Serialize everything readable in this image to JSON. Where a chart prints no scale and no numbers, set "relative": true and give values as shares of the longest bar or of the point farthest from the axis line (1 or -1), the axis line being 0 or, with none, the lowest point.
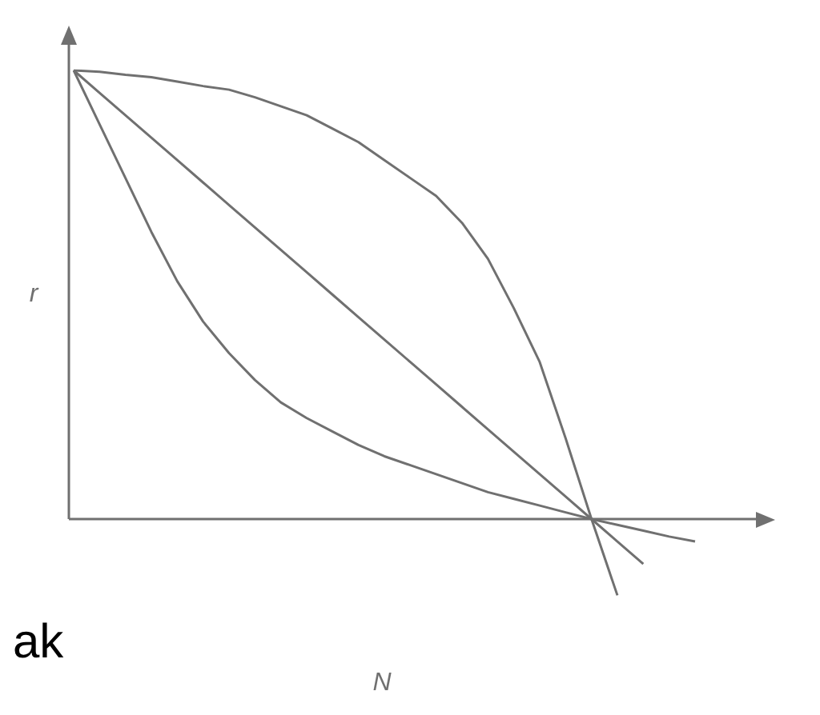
{
  "chart_data": {
    "type": "line",
    "relative": true,
    "xlabel": "N",
    "ylabel": "r",
    "legend": false,
    "grid": false,
    "marker": "none",
    "line_style": "solid",
    "annotations": [
      "ak"
    ],
    "categories": [
      null,
      null,
      null,
      null,
      null,
      null,
      null,
      null,
      null,
      null,
      null,
      null,
      null,
      null,
      null,
      null,
      null,
      null,
      null,
      null,
      null,
      null,
      null,
      null,
      null
    ],
    "series": [
      {
        "color": "#707070",
        "values": [
          1,
          0.997,
          0.99,
          0.985,
          0.975,
          0.965,
          0.957,
          0.94,
          0.92,
          0.9,
          0.87,
          0.84,
          0.8,
          0.76,
          0.72,
          0.66,
          0.58,
          0.47,
          0.35,
          0.18,
          0,
          -0.17,
          null,
          null,
          null
        ]
      },
      {
        "color": "#707070",
        "values": [
          1,
          0.95,
          0.9,
          0.85,
          0.8,
          0.75,
          0.7,
          0.65,
          0.6,
          0.55,
          0.5,
          0.45,
          0.4,
          0.35,
          0.3,
          0.25,
          0.2,
          0.15,
          0.1,
          0.05,
          0,
          -0.05,
          -0.1,
          null,
          null
        ]
      },
      {
        "color": "#707070",
        "values": [
          1,
          0.88,
          0.76,
          0.64,
          0.53,
          0.44,
          0.37,
          0.31,
          0.26,
          0.225,
          0.195,
          0.165,
          0.14,
          0.12,
          0.1,
          0.08,
          0.06,
          0.045,
          0.03,
          0.015,
          0,
          -0.013,
          -0.026,
          -0.039,
          -0.05
        ]
      }
    ]
  }
}
